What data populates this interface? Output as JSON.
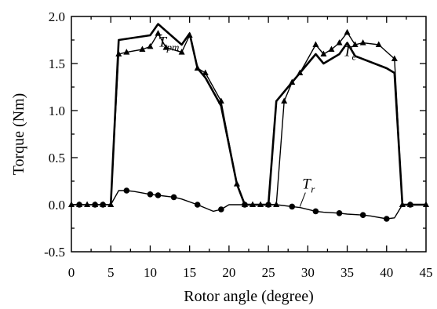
{
  "chart_data": {
    "type": "line",
    "title": "",
    "xlabel": "Rotor angle (degree)",
    "ylabel": "Torque (Nm)",
    "xlim": [
      0,
      45
    ],
    "ylim": [
      -0.5,
      2.0
    ],
    "xticks": [
      0,
      5,
      10,
      15,
      20,
      25,
      30,
      35,
      40,
      45
    ],
    "yticks": [
      -0.5,
      0.0,
      0.5,
      1.0,
      1.5,
      2.0
    ],
    "xtick_labels": [
      "0",
      "5",
      "10",
      "15",
      "20",
      "25",
      "30",
      "35",
      "40",
      "45"
    ],
    "ytick_labels": [
      "-0.5",
      "0.0",
      "0.5",
      "1.0",
      "1.5",
      "2.0"
    ],
    "grid": false,
    "series": [
      {
        "name": "T_pm",
        "style": "solid-thick",
        "x": [
          5,
          6,
          10,
          11,
          14,
          15,
          16,
          17,
          19,
          21,
          22,
          23,
          24,
          25,
          26,
          28,
          29,
          31,
          32,
          34,
          35,
          36,
          40,
          41,
          42,
          43,
          45
        ],
        "y": [
          0.0,
          1.75,
          1.8,
          1.92,
          1.7,
          1.82,
          1.45,
          1.35,
          1.05,
          0.22,
          0.0,
          0.0,
          0.0,
          0.0,
          1.1,
          1.3,
          1.4,
          1.6,
          1.5,
          1.6,
          1.72,
          1.58,
          1.45,
          1.4,
          0.0,
          0.0,
          0.0
        ]
      },
      {
        "name": "T_e",
        "style": "solid-triangle",
        "x": [
          0,
          1,
          2,
          3,
          4,
          5,
          6,
          7,
          9,
          10,
          11,
          12,
          14,
          15,
          16,
          17,
          19,
          21,
          22,
          23,
          24,
          25,
          26,
          27,
          28,
          29,
          31,
          32,
          33,
          34,
          35,
          36,
          37,
          39,
          41,
          42,
          43,
          45
        ],
        "y": [
          0.0,
          0.0,
          0.0,
          0.0,
          0.0,
          0.0,
          1.6,
          1.62,
          1.65,
          1.68,
          1.82,
          1.67,
          1.62,
          1.8,
          1.45,
          1.4,
          1.1,
          0.22,
          0.0,
          0.0,
          0.0,
          0.0,
          0.0,
          1.1,
          1.3,
          1.4,
          1.7,
          1.6,
          1.65,
          1.72,
          1.83,
          1.7,
          1.72,
          1.7,
          1.55,
          0.0,
          0.0,
          0.0
        ]
      },
      {
        "name": "T_r",
        "style": "solid-circle",
        "x": [
          0,
          1,
          3,
          4,
          5,
          6,
          7,
          8,
          10,
          11,
          13,
          14,
          16,
          18,
          19,
          20,
          21,
          22,
          23,
          24,
          25,
          26,
          28,
          29,
          31,
          32,
          34,
          35,
          37,
          38,
          40,
          41,
          42,
          43,
          45
        ],
        "y": [
          0.0,
          0.0,
          0.0,
          0.0,
          0.0,
          0.15,
          0.15,
          0.14,
          0.11,
          0.1,
          0.08,
          0.06,
          0.0,
          -0.07,
          -0.05,
          0.0,
          0.0,
          0.0,
          0.0,
          0.0,
          0.0,
          0.0,
          -0.02,
          -0.03,
          -0.07,
          -0.08,
          -0.09,
          -0.1,
          -0.11,
          -0.12,
          -0.15,
          -0.14,
          0.0,
          0.0,
          0.0
        ],
        "markers_x": [
          1,
          3,
          4,
          7,
          10,
          11,
          13,
          16,
          19,
          22,
          25,
          28,
          31,
          34,
          37,
          40,
          43
        ]
      }
    ],
    "annotations": [
      {
        "series": "T_pm",
        "base": "T",
        "sub": "pm",
        "at_x": 11,
        "at_y": 1.68
      },
      {
        "series": "T_e",
        "base": "T",
        "sub": "e",
        "at_x": 34.5,
        "at_y": 1.58
      },
      {
        "series": "T_r",
        "base": "T",
        "sub": "r",
        "at_x": 29.3,
        "at_y": 0.17
      }
    ]
  }
}
